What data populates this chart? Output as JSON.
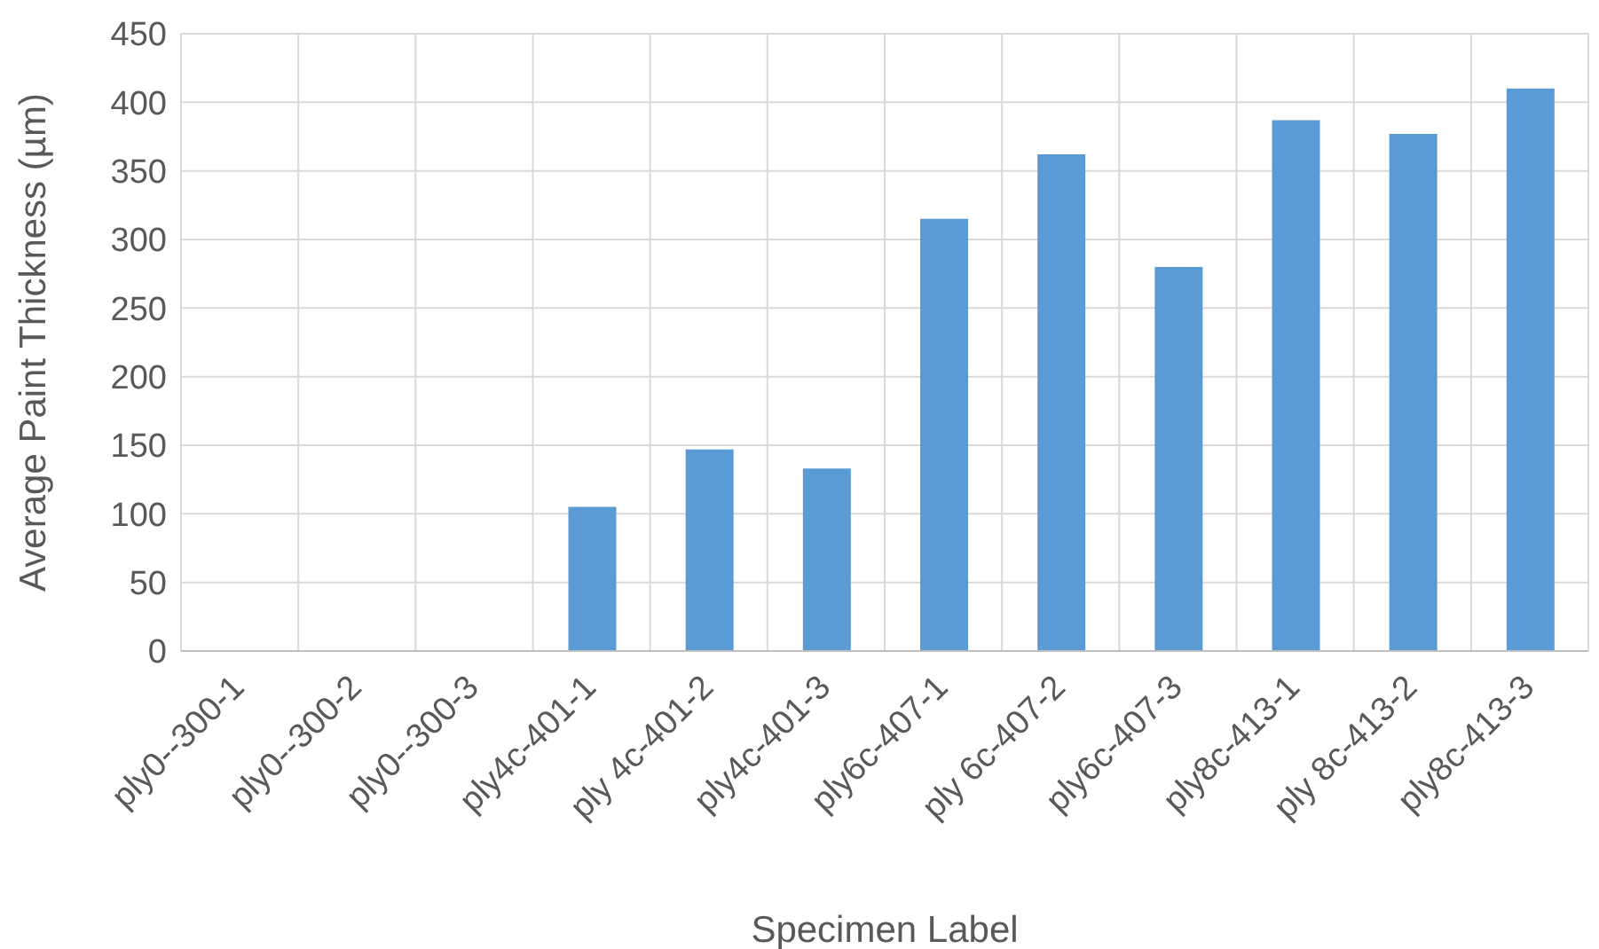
{
  "chart_data": {
    "type": "bar",
    "xlabel": "Specimen Label",
    "ylabel": "Average Paint Thickness (µm)",
    "categories": [
      "ply0--300-1",
      "ply0--300-2",
      "ply0--300-3",
      "ply4c-401-1",
      "ply 4c-401-2",
      "ply4c-401-3",
      "ply6c-407-1",
      "ply 6c-407-2",
      "ply6c-407-3",
      "ply8c-413-1",
      "ply 8c-413-2",
      "ply8c-413-3"
    ],
    "values": [
      0,
      0,
      0,
      105,
      147,
      133,
      315,
      362,
      280,
      387,
      377,
      410
    ],
    "color": "#5b9bd5",
    "ylim": [
      0,
      450
    ],
    "yticks": [
      0,
      50,
      100,
      150,
      200,
      250,
      300,
      350,
      400,
      450
    ],
    "grid": true
  }
}
